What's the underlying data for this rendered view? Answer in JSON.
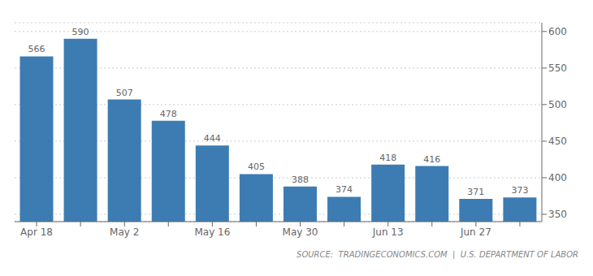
{
  "chart_data": {
    "type": "bar",
    "categories": [
      "Apr 18",
      null,
      "May 2",
      null,
      "May 16",
      null,
      "May 30",
      null,
      "Jun 13",
      null,
      "Jun 27",
      null
    ],
    "values": [
      566,
      590,
      507,
      478,
      444,
      405,
      388,
      374,
      418,
      416,
      371,
      373
    ],
    "color": "#3d7cb3",
    "ylim": [
      340,
      612
    ],
    "yticks": [
      350,
      400,
      450,
      500,
      550,
      600
    ],
    "grid": true,
    "data_labels": true,
    "annotation": "SOURCE:  TRADINGECONOMICS.COM  |  U.S. DEPARTMENT OF LABOR"
  }
}
